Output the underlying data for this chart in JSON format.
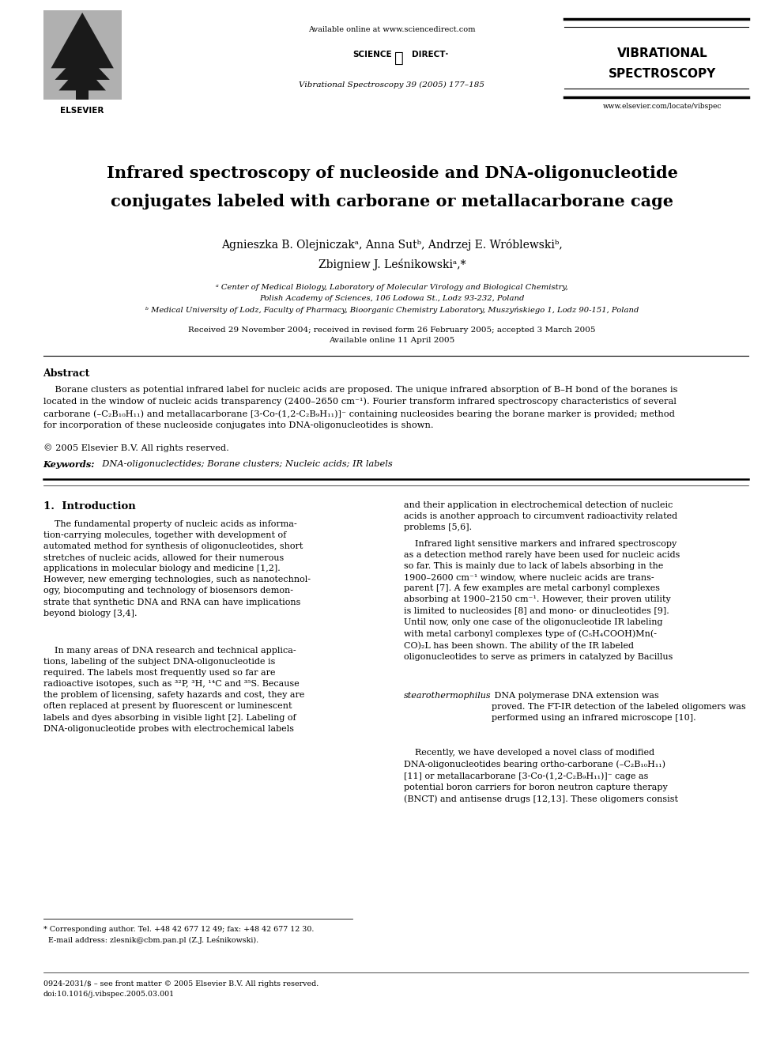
{
  "bg_color": "#ffffff",
  "page_width": 9.92,
  "page_height": 13.23,
  "header": {
    "available_online": "Available online at www.sciencedirect.com",
    "sciencedirect_logo": "SCIENCE ⓐ DIRECT·",
    "journal_name": "Vibrational Spectroscopy 39 (2005) 177–185",
    "journal_brand_line1": "VIBRATIONAL",
    "journal_brand_line2": "SPECTROSCOPY",
    "journal_url": "www.elsevier.com/locate/vibspec"
  },
  "title_line1": "Infrared spectroscopy of nucleoside and DNA-oligonucleotide",
  "title_line2": "conjugates labeled with carborane or metallacarborane cage",
  "author_line1": "Agnieszka B. Olejniczakᵃ, Anna Sutᵇ, Andrzej E. Wróblewskiᵇ,",
  "author_line2": "Zbigniew J. Leśnikowskiᵃ,*",
  "affil_a1": "ᵃ Center of Medical Biology, Laboratory of Molecular Virology and Biological Chemistry,",
  "affil_a2": "Polish Academy of Sciences, 106 Lodowa St., Lodz 93-232, Poland",
  "affil_b": "ᵇ Medical University of Lodz, Faculty of Pharmacy, Bioorganic Chemistry Laboratory, Muszyńskiego 1, Lodz 90-151, Poland",
  "received": "Received 29 November 2004; received in revised form 26 February 2005; accepted 3 March 2005",
  "available": "Available online 11 April 2005",
  "abstract_title": "Abstract",
  "abstract_body": "    Borane clusters as potential infrared label for nucleic acids are proposed. The unique infrared absorption of B–H bond of the boranes is\nlocated in the window of nucleic acids transparency (2400–2650 cm⁻¹). Fourier transform infrared spectroscopy characteristics of several\ncarborane (–C₂B₁₀H₁₁) and metallacarborane [3-Co-(1,2-C₂B₉H₁₁)]⁻ containing nucleosides bearing the borane marker is provided; method\nfor incorporation of these nucleoside conjugates into DNA-oligonucleotides is shown.",
  "copyright": "© 2005 Elsevier B.V. All rights reserved.",
  "keywords_label": "Keywords:",
  "keywords_text": "  DNA-oligonuclectides; Borane clusters; Nucleic acids; IR labels",
  "section1_title": "1.  Introduction",
  "col1_para1": "    The fundamental property of nucleic acids as informa-\ntion-carrying molecules, together with development of\nautomated method for synthesis of oligonucleotides, short\nstretches of nucleic acids, allowed for their numerous\napplications in molecular biology and medicine [1,2].\nHowever, new emerging technologies, such as nanotechnol-\nogy, biocomputing and technology of biosensors demon-\nstrate that synthetic DNA and RNA can have implications\nbeyond biology [3,4].",
  "col1_para2": "    In many areas of DNA research and technical applica-\ntions, labeling of the subject DNA-oligonucleotide is\nrequired. The labels most frequently used so far are\nradioactive isotopes, such as ³²P, ³H, ¹⁴C and ³⁵S. Because\nthe problem of licensing, safety hazards and cost, they are\noften replaced at present by fluorescent or luminescent\nlabels and dyes absorbing in visible light [2]. Labeling of\nDNA-oligonucleotide probes with electrochemical labels",
  "col2_para1": "and their application in electrochemical detection of nucleic\nacids is another approach to circumvent radioactivity related\nproblems [5,6].",
  "col2_para2a": "    Infrared light sensitive markers and infrared spectroscopy\nas a detection method rarely have been used for nucleic acids\nso far. This is mainly due to lack of labels absorbing in the\n1900–2600 cm⁻¹ window, where nucleic acids are trans-\nparent [7]. A few examples are metal carbonyl complexes\nabsorbing at 1900–2150 cm⁻¹. However, their proven utility\nis limited to nucleosides [8] and mono- or dinucleotides [9].\nUntil now, only one case of the oligonucleotide IR labeling\nwith metal carbonyl complexes type of (C₅H₄COOH)Mn(-\nCO)₂L has been shown. The ability of the IR labeled\noligonucleotides to serve as primers in catalyzed by Bacillus",
  "col2_para2b_italic": "stearothermophilus",
  "col2_para2c": " DNA polymerase DNA extension was\nproved. The FT-IR detection of the labeled oligomers was\nperformed using an infrared microscope [10].",
  "col2_para3": "    Recently, we have developed a novel class of modified\nDNA-oligonucleotides bearing ortho-carborane (–C₂B₁₀H₁₁)\n[11] or metallacarborane [3-Co-(1,2-C₂B₉H₁₁)]⁻ cage as\npotential boron carriers for boron neutron capture therapy\n(BNCT) and antisense drugs [12,13]. These oligomers consist",
  "footnote_star": "* Corresponding author. Tel. +48 42 677 12 49; fax: +48 42 677 12 30.",
  "footnote_email": "  E-mail address: zlesnik@cbm.pan.pl (Z.J. Leśnikowski).",
  "footer1": "0924-2031/$ – see front matter © 2005 Elsevier B.V. All rights reserved.",
  "footer2": "doi:10.1016/j.vibspec.2005.03.001"
}
